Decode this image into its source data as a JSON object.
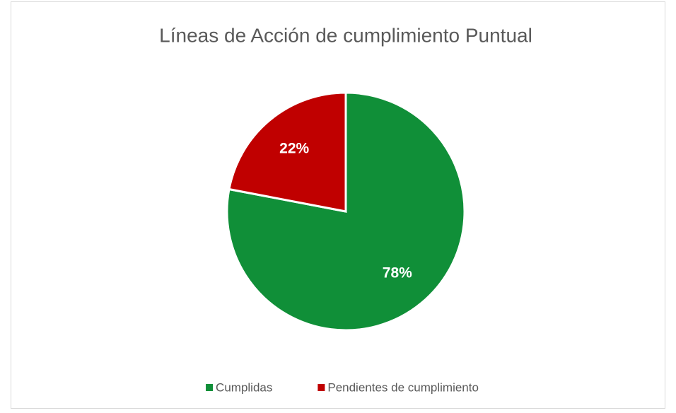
{
  "chart_data": {
    "type": "pie",
    "title": "Líneas de Acción de cumplimiento Puntual",
    "categories": [
      "Cumplidas",
      "Pendientes de cumplimiento"
    ],
    "values": [
      78,
      22
    ],
    "value_labels": [
      "78%",
      "22%"
    ],
    "colors": [
      "#108f38",
      "#c00000"
    ],
    "legend": "bottom"
  }
}
